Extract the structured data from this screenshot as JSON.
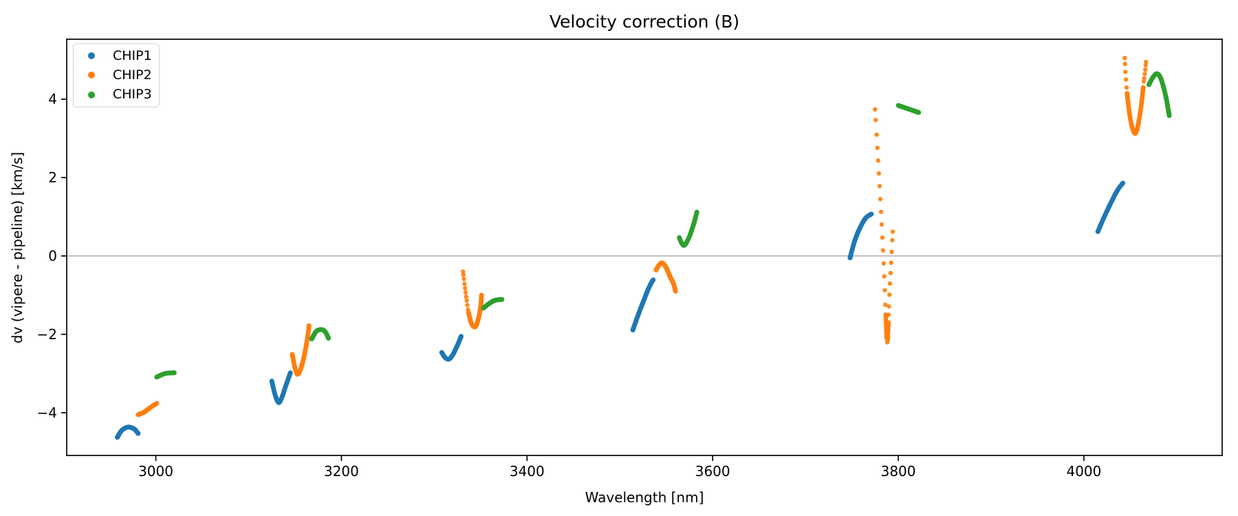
{
  "chart_data": {
    "type": "scatter",
    "title": "Velocity correction (B)",
    "xlabel": "Wavelength [nm]",
    "ylabel": "dv (vipere - pipeline) [km/s]",
    "xlim": [
      2904,
      4149
    ],
    "ylim": [
      -5.09,
      5.53
    ],
    "xticks": [
      3000,
      3200,
      3400,
      3600,
      3800,
      4000
    ],
    "xtick_labels": [
      "3000",
      "3200",
      "3400",
      "3600",
      "3800",
      "4000"
    ],
    "yticks": [
      4,
      2,
      0,
      -2,
      -4
    ],
    "ytick_labels": [
      "4",
      "2",
      "0",
      "−2",
      "−4"
    ],
    "grid": false,
    "zero_line": {
      "y": 0,
      "color": "#808080"
    },
    "legend": {
      "position": "upper left"
    },
    "axis_color": "#000000",
    "series": [
      {
        "name": "CHIP1",
        "color": "#1f77b4",
        "segments": [
          {
            "style": "dense",
            "n": 42,
            "r": 3.5,
            "points": [
              [
                2958.5,
                -4.63
              ],
              [
                2963,
                -4.46
              ],
              [
                2968,
                -4.38
              ],
              [
                2972,
                -4.37
              ],
              [
                2977,
                -4.42
              ],
              [
                2981,
                -4.53
              ]
            ]
          },
          {
            "style": "dense",
            "n": 55,
            "r": 3.5,
            "points": [
              [
                3125,
                -3.19
              ],
              [
                3128,
                -3.5
              ],
              [
                3131,
                -3.7
              ],
              [
                3133,
                -3.74
              ],
              [
                3136,
                -3.6
              ],
              [
                3140,
                -3.32
              ],
              [
                3145,
                -2.98
              ]
            ]
          },
          {
            "style": "dense",
            "n": 48,
            "r": 3.5,
            "points": [
              [
                3308,
                -2.46
              ],
              [
                3312,
                -2.6
              ],
              [
                3316,
                -2.63
              ],
              [
                3320,
                -2.52
              ],
              [
                3325,
                -2.28
              ],
              [
                3329,
                -2.05
              ]
            ]
          },
          {
            "style": "dense",
            "n": 60,
            "r": 3.5,
            "points": [
              [
                3514,
                -1.89
              ],
              [
                3519,
                -1.55
              ],
              [
                3525,
                -1.18
              ],
              [
                3530,
                -0.88
              ],
              [
                3534,
                -0.68
              ],
              [
                3536,
                -0.61
              ]
            ]
          },
          {
            "style": "dense",
            "n": 60,
            "r": 3.5,
            "points": [
              [
                3748,
                -0.05
              ],
              [
                3753,
                0.38
              ],
              [
                3759,
                0.73
              ],
              [
                3765,
                0.97
              ],
              [
                3771,
                1.07
              ]
            ]
          },
          {
            "style": "dense",
            "n": 55,
            "r": 3.5,
            "points": [
              [
                4015,
                0.62
              ],
              [
                4022,
                1.0
              ],
              [
                4029,
                1.35
              ],
              [
                4036,
                1.67
              ],
              [
                4042,
                1.86
              ]
            ]
          }
        ]
      },
      {
        "name": "CHIP2",
        "color": "#ff7f0e",
        "segments": [
          {
            "style": "dense",
            "n": 38,
            "r": 3.5,
            "points": [
              [
                2981,
                -4.05
              ],
              [
                2987,
                -3.99
              ],
              [
                2994,
                -3.87
              ],
              [
                3001,
                -3.76
              ]
            ]
          },
          {
            "style": "dense",
            "n": 60,
            "r": 3.5,
            "points": [
              [
                3147,
                -2.51
              ],
              [
                3150,
                -2.86
              ],
              [
                3153,
                -3.02
              ],
              [
                3157,
                -2.82
              ],
              [
                3161,
                -2.42
              ],
              [
                3164,
                -2.0
              ],
              [
                3165,
                -1.78
              ]
            ]
          },
          {
            "style": "dotted",
            "n": 11,
            "r": 3.2,
            "points": [
              [
                3331,
                -0.4
              ],
              [
                3333,
                -0.78
              ],
              [
                3335,
                -1.15
              ],
              [
                3337,
                -1.45
              ]
            ]
          },
          {
            "style": "dense",
            "n": 55,
            "r": 3.5,
            "points": [
              [
                3337,
                -1.45
              ],
              [
                3340,
                -1.72
              ],
              [
                3344,
                -1.81
              ],
              [
                3347,
                -1.65
              ],
              [
                3350,
                -1.3
              ],
              [
                3351,
                -1.0
              ]
            ]
          },
          {
            "style": "dense",
            "n": 55,
            "r": 3.5,
            "points": [
              [
                3539,
                -0.36
              ],
              [
                3543,
                -0.21
              ],
              [
                3546,
                -0.18
              ],
              [
                3550,
                -0.3
              ],
              [
                3554,
                -0.52
              ],
              [
                3558,
                -0.72
              ],
              [
                3560,
                -0.9
              ]
            ]
          },
          {
            "style": "dotted",
            "n": 17,
            "r": 3.2,
            "points": [
              [
                3775,
                3.74
              ],
              [
                3777,
                2.95
              ],
              [
                3779,
                2.15
              ],
              [
                3781,
                1.3
              ],
              [
                3783,
                0.4
              ],
              [
                3785,
                -0.6
              ],
              [
                3786.5,
                -1.5
              ]
            ]
          },
          {
            "style": "dense",
            "n": 22,
            "r": 3.4,
            "points": [
              [
                3786.5,
                -1.5
              ],
              [
                3787.5,
                -2.1
              ],
              [
                3788.5,
                -2.16
              ],
              [
                3789.5,
                -1.7
              ]
            ]
          },
          {
            "style": "dotted",
            "n": 9,
            "r": 3.2,
            "points": [
              [
                3789.5,
                -1.5
              ],
              [
                3791,
                -0.75
              ],
              [
                3792.5,
                -0.05
              ],
              [
                3794,
                0.62
              ]
            ]
          },
          {
            "style": "dotted",
            "n": 6,
            "r": 3.2,
            "points": [
              [
                4044,
                5.05
              ],
              [
                4045,
                4.6
              ],
              [
                4046.5,
                4.15
              ]
            ]
          },
          {
            "style": "dense",
            "n": 75,
            "r": 3.4,
            "points": [
              [
                4046.5,
                4.15
              ],
              [
                4050,
                3.5
              ],
              [
                4054,
                3.15
              ],
              [
                4057,
                3.2
              ],
              [
                4061,
                3.7
              ],
              [
                4064,
                4.3
              ]
            ]
          },
          {
            "style": "dotted",
            "n": 6,
            "r": 3.2,
            "points": [
              [
                4064.5,
                4.45
              ],
              [
                4066,
                4.72
              ],
              [
                4067,
                4.95
              ]
            ]
          }
        ]
      },
      {
        "name": "CHIP3",
        "color": "#2ca02c",
        "segments": [
          {
            "style": "dense",
            "n": 32,
            "r": 3.5,
            "points": [
              [
                3001,
                -3.09
              ],
              [
                3010,
                -3.0
              ],
              [
                3020,
                -2.98
              ]
            ]
          },
          {
            "style": "dense",
            "n": 40,
            "r": 3.5,
            "points": [
              [
                3168,
                -2.12
              ],
              [
                3173,
                -1.92
              ],
              [
                3179,
                -1.88
              ],
              [
                3183,
                -1.95
              ],
              [
                3186,
                -2.1
              ]
            ]
          },
          {
            "style": "dense",
            "n": 38,
            "r": 3.5,
            "points": [
              [
                3353,
                -1.33
              ],
              [
                3360,
                -1.2
              ],
              [
                3366,
                -1.13
              ],
              [
                3373,
                -1.11
              ]
            ]
          },
          {
            "style": "dense",
            "n": 48,
            "r": 3.5,
            "points": [
              [
                3564,
                0.47
              ],
              [
                3567,
                0.31
              ],
              [
                3570,
                0.28
              ],
              [
                3575,
                0.5
              ],
              [
                3580,
                0.85
              ],
              [
                3583,
                1.12
              ]
            ]
          },
          {
            "style": "dense",
            "n": 42,
            "r": 3.5,
            "points": [
              [
                3800,
                3.84
              ],
              [
                3811,
                3.75
              ],
              [
                3822,
                3.66
              ]
            ]
          },
          {
            "style": "dense",
            "n": 60,
            "r": 3.5,
            "points": [
              [
                4070,
                4.37
              ],
              [
                4075,
                4.58
              ],
              [
                4079,
                4.65
              ],
              [
                4083,
                4.52
              ],
              [
                4088,
                4.1
              ],
              [
                4092,
                3.58
              ]
            ]
          }
        ]
      }
    ]
  }
}
